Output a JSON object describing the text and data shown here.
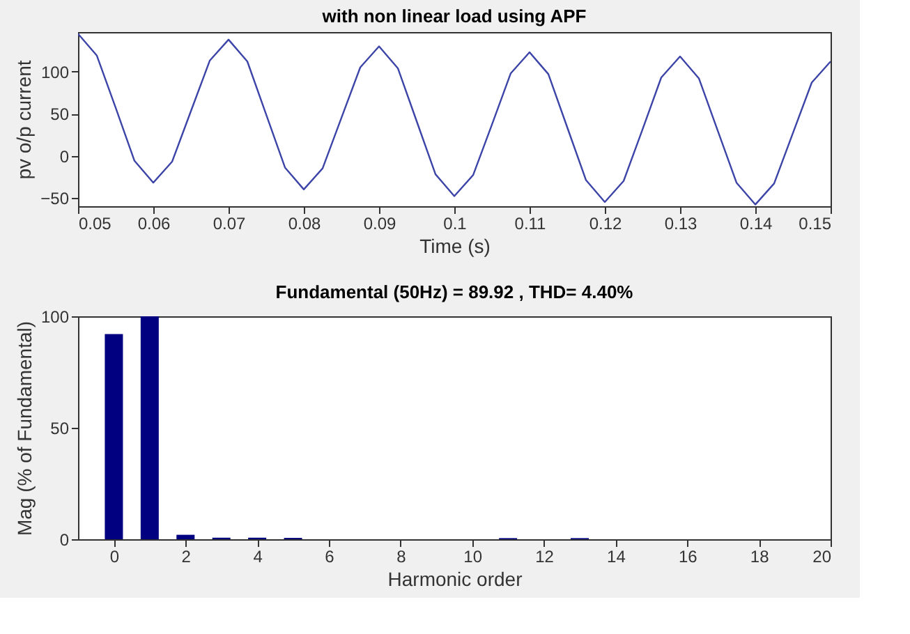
{
  "chart_data": [
    {
      "type": "line",
      "title": "with non linear load using APF",
      "xlabel": "Time (s)",
      "ylabel": "pv o/p current",
      "x": [
        0.05,
        0.0525,
        0.055,
        0.0575,
        0.06,
        0.0625,
        0.065,
        0.0675,
        0.07,
        0.0725,
        0.075,
        0.0775,
        0.08,
        0.0825,
        0.085,
        0.0875,
        0.09,
        0.0925,
        0.095,
        0.0975,
        0.1,
        0.1025,
        0.105,
        0.1075,
        0.11,
        0.1125,
        0.115,
        0.1175,
        0.12,
        0.1225,
        0.125,
        0.1275,
        0.13,
        0.1325,
        0.135,
        0.1375,
        0.14,
        0.1425,
        0.145,
        0.1475,
        0.15
      ],
      "series": [
        {
          "color": "#3c44a8",
          "values": [
            145,
            119,
            57,
            -6,
            -32,
            -7,
            53,
            113,
            138,
            112,
            49,
            -14,
            -40,
            -15,
            45,
            105,
            130,
            104,
            41,
            -22,
            -48,
            -23,
            37,
            98,
            123,
            97,
            34,
            -29,
            -55,
            -30,
            31,
            93,
            118,
            92,
            30,
            -32,
            -58,
            -33,
            27,
            87,
            112
          ]
        }
      ],
      "xlim": [
        0.05,
        0.15
      ],
      "xticks": [
        0.05,
        0.06,
        0.07,
        0.08,
        0.09,
        {
          "value": 0.1,
          "label": "0.1"
        },
        0.11,
        0.12,
        0.13,
        0.14,
        0.15
      ],
      "ylim": [
        -60,
        147
      ],
      "yticks": [
        -50,
        0,
        50,
        100
      ],
      "grid": false,
      "marker": "none",
      "line_style": "solid"
    },
    {
      "type": "bar",
      "title": "Fundamental (50Hz) = 89.92 , THD= 4.40%",
      "xlabel": "Harmonic order",
      "ylabel": "Mag (% of Fundamental)",
      "x": [
        0,
        1,
        2,
        3,
        4,
        5,
        6,
        7,
        8,
        9,
        10,
        11,
        12,
        13,
        14,
        15,
        16,
        17,
        18,
        19
      ],
      "series": [
        {
          "color": "#000080",
          "values": [
            92,
            100,
            2,
            0.7,
            0.7,
            0.6,
            0,
            0,
            0,
            0,
            0,
            0.5,
            0,
            0.5,
            0,
            0,
            0,
            0,
            0,
            0
          ]
        }
      ],
      "xlim": [
        -1,
        20
      ],
      "xticks": [
        0,
        2,
        4,
        6,
        8,
        10,
        12,
        14,
        16,
        18,
        20
      ],
      "ylim": [
        0,
        100
      ],
      "yticks": [
        0,
        50,
        100
      ],
      "grid": false
    }
  ]
}
